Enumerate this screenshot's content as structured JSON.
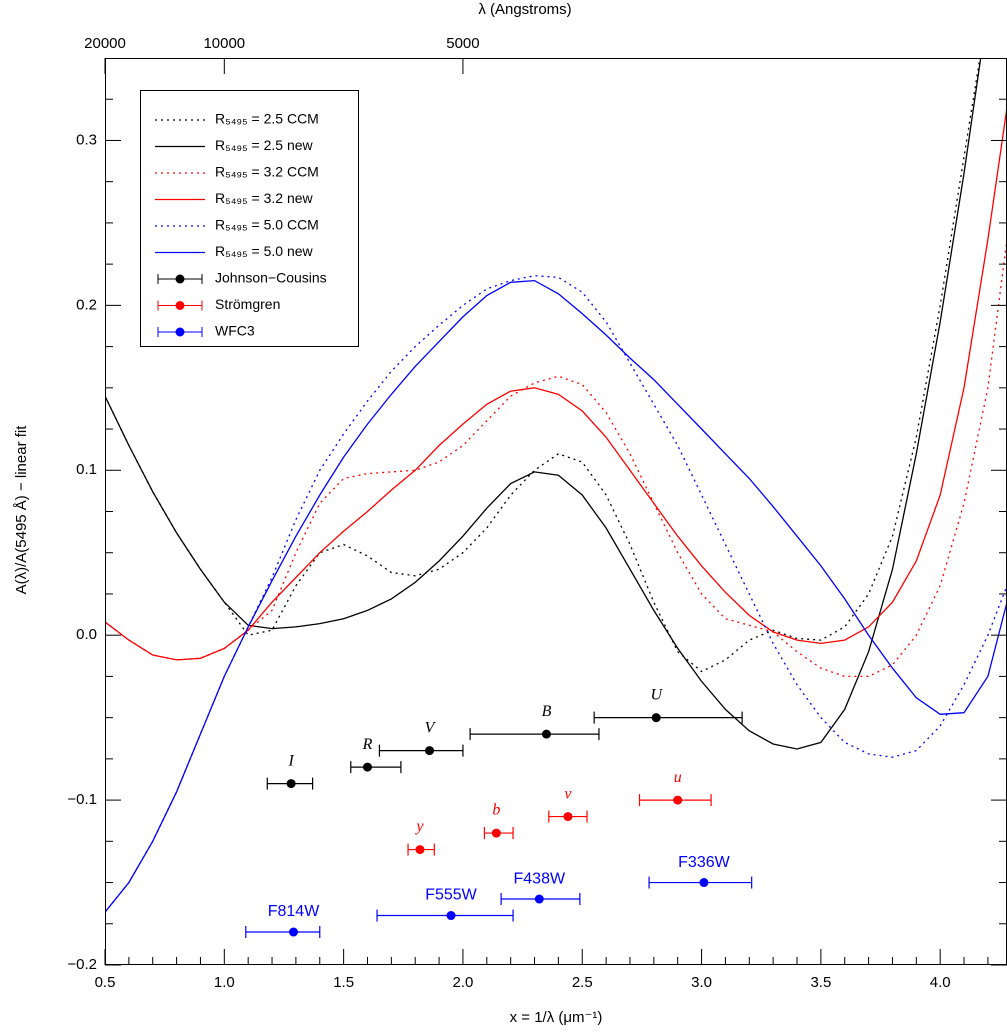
{
  "chart_data": {
    "type": "line",
    "top_axis_label": "λ (Angstroms)",
    "x_label": "x = 1/λ (μm⁻¹)",
    "y_label": "A(λ)/A(5495 Å) − linear fit",
    "xlim": [
      0.5,
      4.28
    ],
    "ylim": [
      -0.2,
      0.35
    ],
    "xticks": [
      0.5,
      {
        "value": 1.0,
        "label": "1.0"
      },
      1.5,
      {
        "value": 2.0,
        "label": "2.0"
      },
      2.5,
      {
        "value": 3.0,
        "label": "3.0"
      },
      3.5,
      {
        "value": 4.0,
        "label": "4.0"
      }
    ],
    "yticks": [
      {
        "value": -0.2,
        "label": "−0.2"
      },
      {
        "value": -0.1,
        "label": "−0.1"
      },
      {
        "value": 0.0,
        "label": "0.0"
      },
      0.1,
      0.2,
      0.3
    ],
    "xminorticks": [
      0.6,
      0.7,
      0.8,
      0.9,
      1.1,
      1.2,
      1.3,
      1.4,
      1.6,
      1.7,
      1.8,
      1.9,
      2.1,
      2.2,
      2.3,
      2.4,
      2.6,
      2.7,
      2.8,
      2.9,
      3.1,
      3.2,
      3.3,
      3.4,
      3.6,
      3.7,
      3.8,
      3.9,
      4.1,
      4.2
    ],
    "yminorticks": [
      -0.175,
      -0.15,
      -0.125,
      -0.075,
      -0.05,
      -0.025,
      0.025,
      0.05,
      0.075,
      0.125,
      0.15,
      0.175,
      0.225,
      0.25,
      0.275,
      0.325
    ],
    "top_ticks": [
      20000,
      10000,
      5000
    ],
    "x": [
      0.5,
      0.6,
      0.7,
      0.8,
      0.9,
      1.0,
      1.1,
      1.2,
      1.3,
      1.4,
      1.5,
      1.6,
      1.7,
      1.8,
      1.9,
      2.0,
      2.1,
      2.2,
      2.3,
      2.4,
      2.5,
      2.6,
      2.7,
      2.8,
      2.9,
      3.0,
      3.1,
      3.2,
      3.3,
      3.4,
      3.5,
      3.6,
      3.7,
      3.8,
      3.9,
      4.0,
      4.1,
      4.2,
      4.28
    ],
    "series": [
      {
        "name": "R₅₄₉₅ = 2.5 CCM",
        "color": "#000000",
        "dash": "dotted",
        "values": [
          0.145,
          0.115,
          0.087,
          0.062,
          0.04,
          0.02,
          0.0,
          0.003,
          0.03,
          0.05,
          0.055,
          0.048,
          0.038,
          0.036,
          0.04,
          0.05,
          0.065,
          0.085,
          0.1,
          0.11,
          0.105,
          0.085,
          0.055,
          0.02,
          -0.01,
          -0.022,
          -0.015,
          -0.003,
          0.003,
          -0.002,
          -0.003,
          0.005,
          0.025,
          0.06,
          0.12,
          0.2,
          0.29,
          0.38,
          null
        ]
      },
      {
        "name": "R₅₄₉₅ = 2.5 new",
        "color": "#000000",
        "dash": "solid",
        "values": [
          0.145,
          0.115,
          0.087,
          0.062,
          0.04,
          0.02,
          0.006,
          0.004,
          0.005,
          0.007,
          0.01,
          0.015,
          0.022,
          0.032,
          0.045,
          0.06,
          0.077,
          0.092,
          0.099,
          0.097,
          0.085,
          0.065,
          0.04,
          0.015,
          -0.008,
          -0.028,
          -0.045,
          -0.058,
          -0.066,
          -0.069,
          -0.065,
          -0.045,
          -0.01,
          0.04,
          0.11,
          0.19,
          0.28,
          0.38,
          null
        ]
      },
      {
        "name": "R₅₄₉₅ = 3.2 CCM",
        "color": "#ff0000",
        "dash": "dotted",
        "values": [
          0.008,
          -0.003,
          -0.012,
          -0.015,
          -0.014,
          -0.008,
          0.003,
          0.015,
          0.05,
          0.08,
          0.095,
          0.098,
          0.099,
          0.1,
          0.105,
          0.115,
          0.13,
          0.145,
          0.153,
          0.157,
          0.152,
          0.135,
          0.11,
          0.08,
          0.05,
          0.025,
          0.01,
          0.006,
          0.002,
          -0.01,
          -0.02,
          -0.025,
          -0.025,
          -0.018,
          0.0,
          0.03,
          0.08,
          0.15,
          0.24
        ]
      },
      {
        "name": "R₅₄₉₅ = 3.2 new",
        "color": "#ff0000",
        "dash": "solid",
        "values": [
          0.008,
          -0.003,
          -0.012,
          -0.015,
          -0.014,
          -0.008,
          0.003,
          0.02,
          0.035,
          0.05,
          0.063,
          0.075,
          0.088,
          0.1,
          0.115,
          0.128,
          0.14,
          0.148,
          0.15,
          0.146,
          0.136,
          0.12,
          0.1,
          0.08,
          0.06,
          0.042,
          0.026,
          0.012,
          0.002,
          -0.003,
          -0.005,
          -0.003,
          0.005,
          0.02,
          0.045,
          0.085,
          0.15,
          0.24,
          0.32
        ]
      },
      {
        "name": "R₅₄₉₅ = 5.0 CCM",
        "color": "#0000ff",
        "dash": "dotted",
        "values": [
          -0.168,
          -0.15,
          -0.125,
          -0.095,
          -0.06,
          -0.025,
          0.005,
          0.035,
          0.07,
          0.1,
          0.122,
          0.142,
          0.16,
          0.175,
          0.188,
          0.2,
          0.21,
          0.215,
          0.218,
          0.217,
          0.208,
          0.19,
          0.165,
          0.14,
          0.115,
          0.085,
          0.055,
          0.025,
          -0.005,
          -0.03,
          -0.05,
          -0.065,
          -0.072,
          -0.074,
          -0.07,
          -0.055,
          -0.03,
          0.0,
          0.03
        ]
      },
      {
        "name": "R₅₄₉₅ = 5.0 new",
        "color": "#0000ff",
        "dash": "solid",
        "values": [
          -0.168,
          -0.15,
          -0.125,
          -0.095,
          -0.06,
          -0.025,
          0.005,
          0.033,
          0.06,
          0.085,
          0.108,
          0.128,
          0.146,
          0.163,
          0.178,
          0.193,
          0.206,
          0.214,
          0.215,
          0.207,
          0.195,
          0.182,
          0.168,
          0.155,
          0.14,
          0.125,
          0.11,
          0.095,
          0.078,
          0.06,
          0.042,
          0.022,
          0.0,
          -0.02,
          -0.038,
          -0.048,
          -0.047,
          -0.025,
          0.02
        ]
      }
    ],
    "points": [
      {
        "name": "Johnson−Cousins",
        "color": "#000000",
        "label_style": "serif-italic",
        "labels": [
          "I",
          "R",
          "V",
          "B",
          "U"
        ],
        "x": [
          1.28,
          1.6,
          1.86,
          2.35,
          2.81
        ],
        "xmin": [
          1.18,
          1.53,
          1.65,
          2.03,
          2.55
        ],
        "xmax": [
          1.37,
          1.74,
          2.0,
          2.57,
          3.17
        ],
        "y": [
          -0.09,
          -0.08,
          -0.07,
          -0.06,
          -0.05
        ]
      },
      {
        "name": "Strömgren",
        "color": "#ff0000",
        "label_style": "serif-italic",
        "labels": [
          "y",
          "b",
          "v",
          "u"
        ],
        "x": [
          1.82,
          2.14,
          2.44,
          2.9
        ],
        "xmin": [
          1.77,
          2.09,
          2.36,
          2.74
        ],
        "xmax": [
          1.88,
          2.21,
          2.52,
          3.04
        ],
        "y": [
          -0.13,
          -0.12,
          -0.11,
          -0.1
        ]
      },
      {
        "name": "WFC3",
        "color": "#0000ff",
        "label_style": "sans",
        "labels": [
          "F814W",
          "F555W",
          "F438W",
          "F336W"
        ],
        "x": [
          1.29,
          1.95,
          2.32,
          3.01
        ],
        "xmin": [
          1.09,
          1.64,
          2.16,
          2.78
        ],
        "xmax": [
          1.4,
          2.21,
          2.49,
          3.21
        ],
        "y": [
          -0.18,
          -0.17,
          -0.16,
          -0.15
        ]
      }
    ]
  }
}
